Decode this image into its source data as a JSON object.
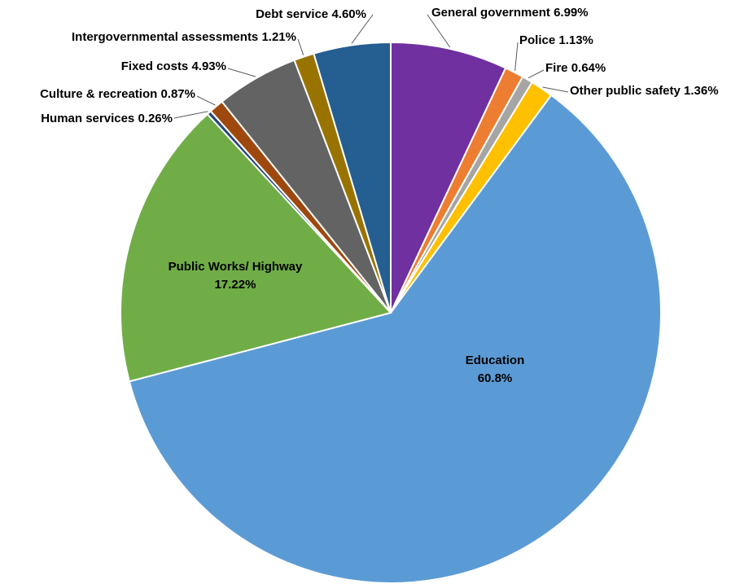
{
  "chart_data": {
    "type": "pie",
    "categories": [
      "General government",
      "Police",
      "Fire",
      "Other public safety",
      "Education",
      "Public Works/ Highway",
      "Human services",
      "Culture & recreation",
      "Fixed costs",
      "Intergovernmental assessments",
      "Debt service"
    ],
    "values": [
      6.99,
      1.13,
      0.64,
      1.36,
      60.8,
      17.22,
      0.26,
      0.87,
      4.93,
      1.21,
      4.6
    ],
    "value_labels": [
      "6.99%",
      "1.13%",
      "0.64%",
      "1.36%",
      "60.8%",
      "17.22%",
      "0.26%",
      "0.87%",
      "4.93%",
      "1.21%",
      "4.60%"
    ],
    "colors": [
      "#7030a0",
      "#ed7d31",
      "#a5a5a5",
      "#ffc000",
      "#5b9bd5",
      "#70ad47",
      "#264478",
      "#9e480e",
      "#636363",
      "#997300",
      "#255e91"
    ]
  }
}
